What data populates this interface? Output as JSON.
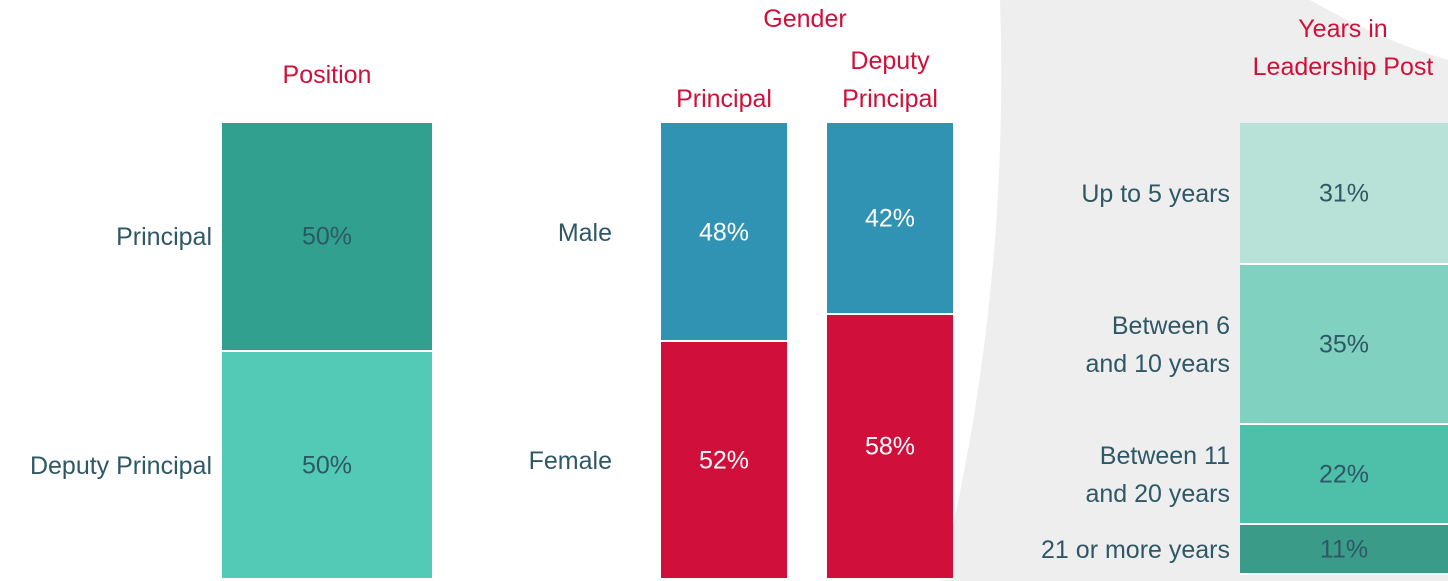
{
  "chart_data": [
    {
      "type": "stacked-bar",
      "title": "Position",
      "categories": [
        null
      ],
      "ylim": [
        0,
        100
      ],
      "series": [
        {
          "name": "Principal",
          "color": "#32a08f",
          "values": [
            50
          ],
          "value_labels": [
            "50%"
          ]
        },
        {
          "name": "Deputy Principal",
          "color": "#52cab5",
          "values": [
            50
          ],
          "value_labels": [
            "50%"
          ]
        }
      ]
    },
    {
      "type": "stacked-bar",
      "title": "Gender",
      "categories": [
        "Principal",
        "Deputy Principal"
      ],
      "ylim": [
        0,
        100
      ],
      "series": [
        {
          "name": "Male",
          "color": "#3193b3",
          "values": [
            48,
            42
          ],
          "value_labels": [
            "48%",
            "42%"
          ]
        },
        {
          "name": "Female",
          "color": "#d0103a",
          "values": [
            52,
            58
          ],
          "value_labels": [
            "52%",
            "58%"
          ]
        }
      ]
    },
    {
      "type": "stacked-bar",
      "title": "Years in Leadership Post",
      "categories": [
        null
      ],
      "ylim": [
        0,
        100
      ],
      "series": [
        {
          "name": "Up to 5 years",
          "color": "#b8e2d7",
          "values": [
            31
          ],
          "value_labels": [
            "31%"
          ]
        },
        {
          "name": "Between 6 and 10 years",
          "color": "#80d1c0",
          "values": [
            35
          ],
          "value_labels": [
            "35%"
          ]
        },
        {
          "name": "Between 11 and 20 years",
          "color": "#4ebfa9",
          "values": [
            22
          ],
          "value_labels": [
            "22%"
          ]
        },
        {
          "name": "21 or more years",
          "color": "#3a9c88",
          "values": [
            11
          ],
          "value_labels": [
            "11%"
          ]
        }
      ]
    }
  ]
}
